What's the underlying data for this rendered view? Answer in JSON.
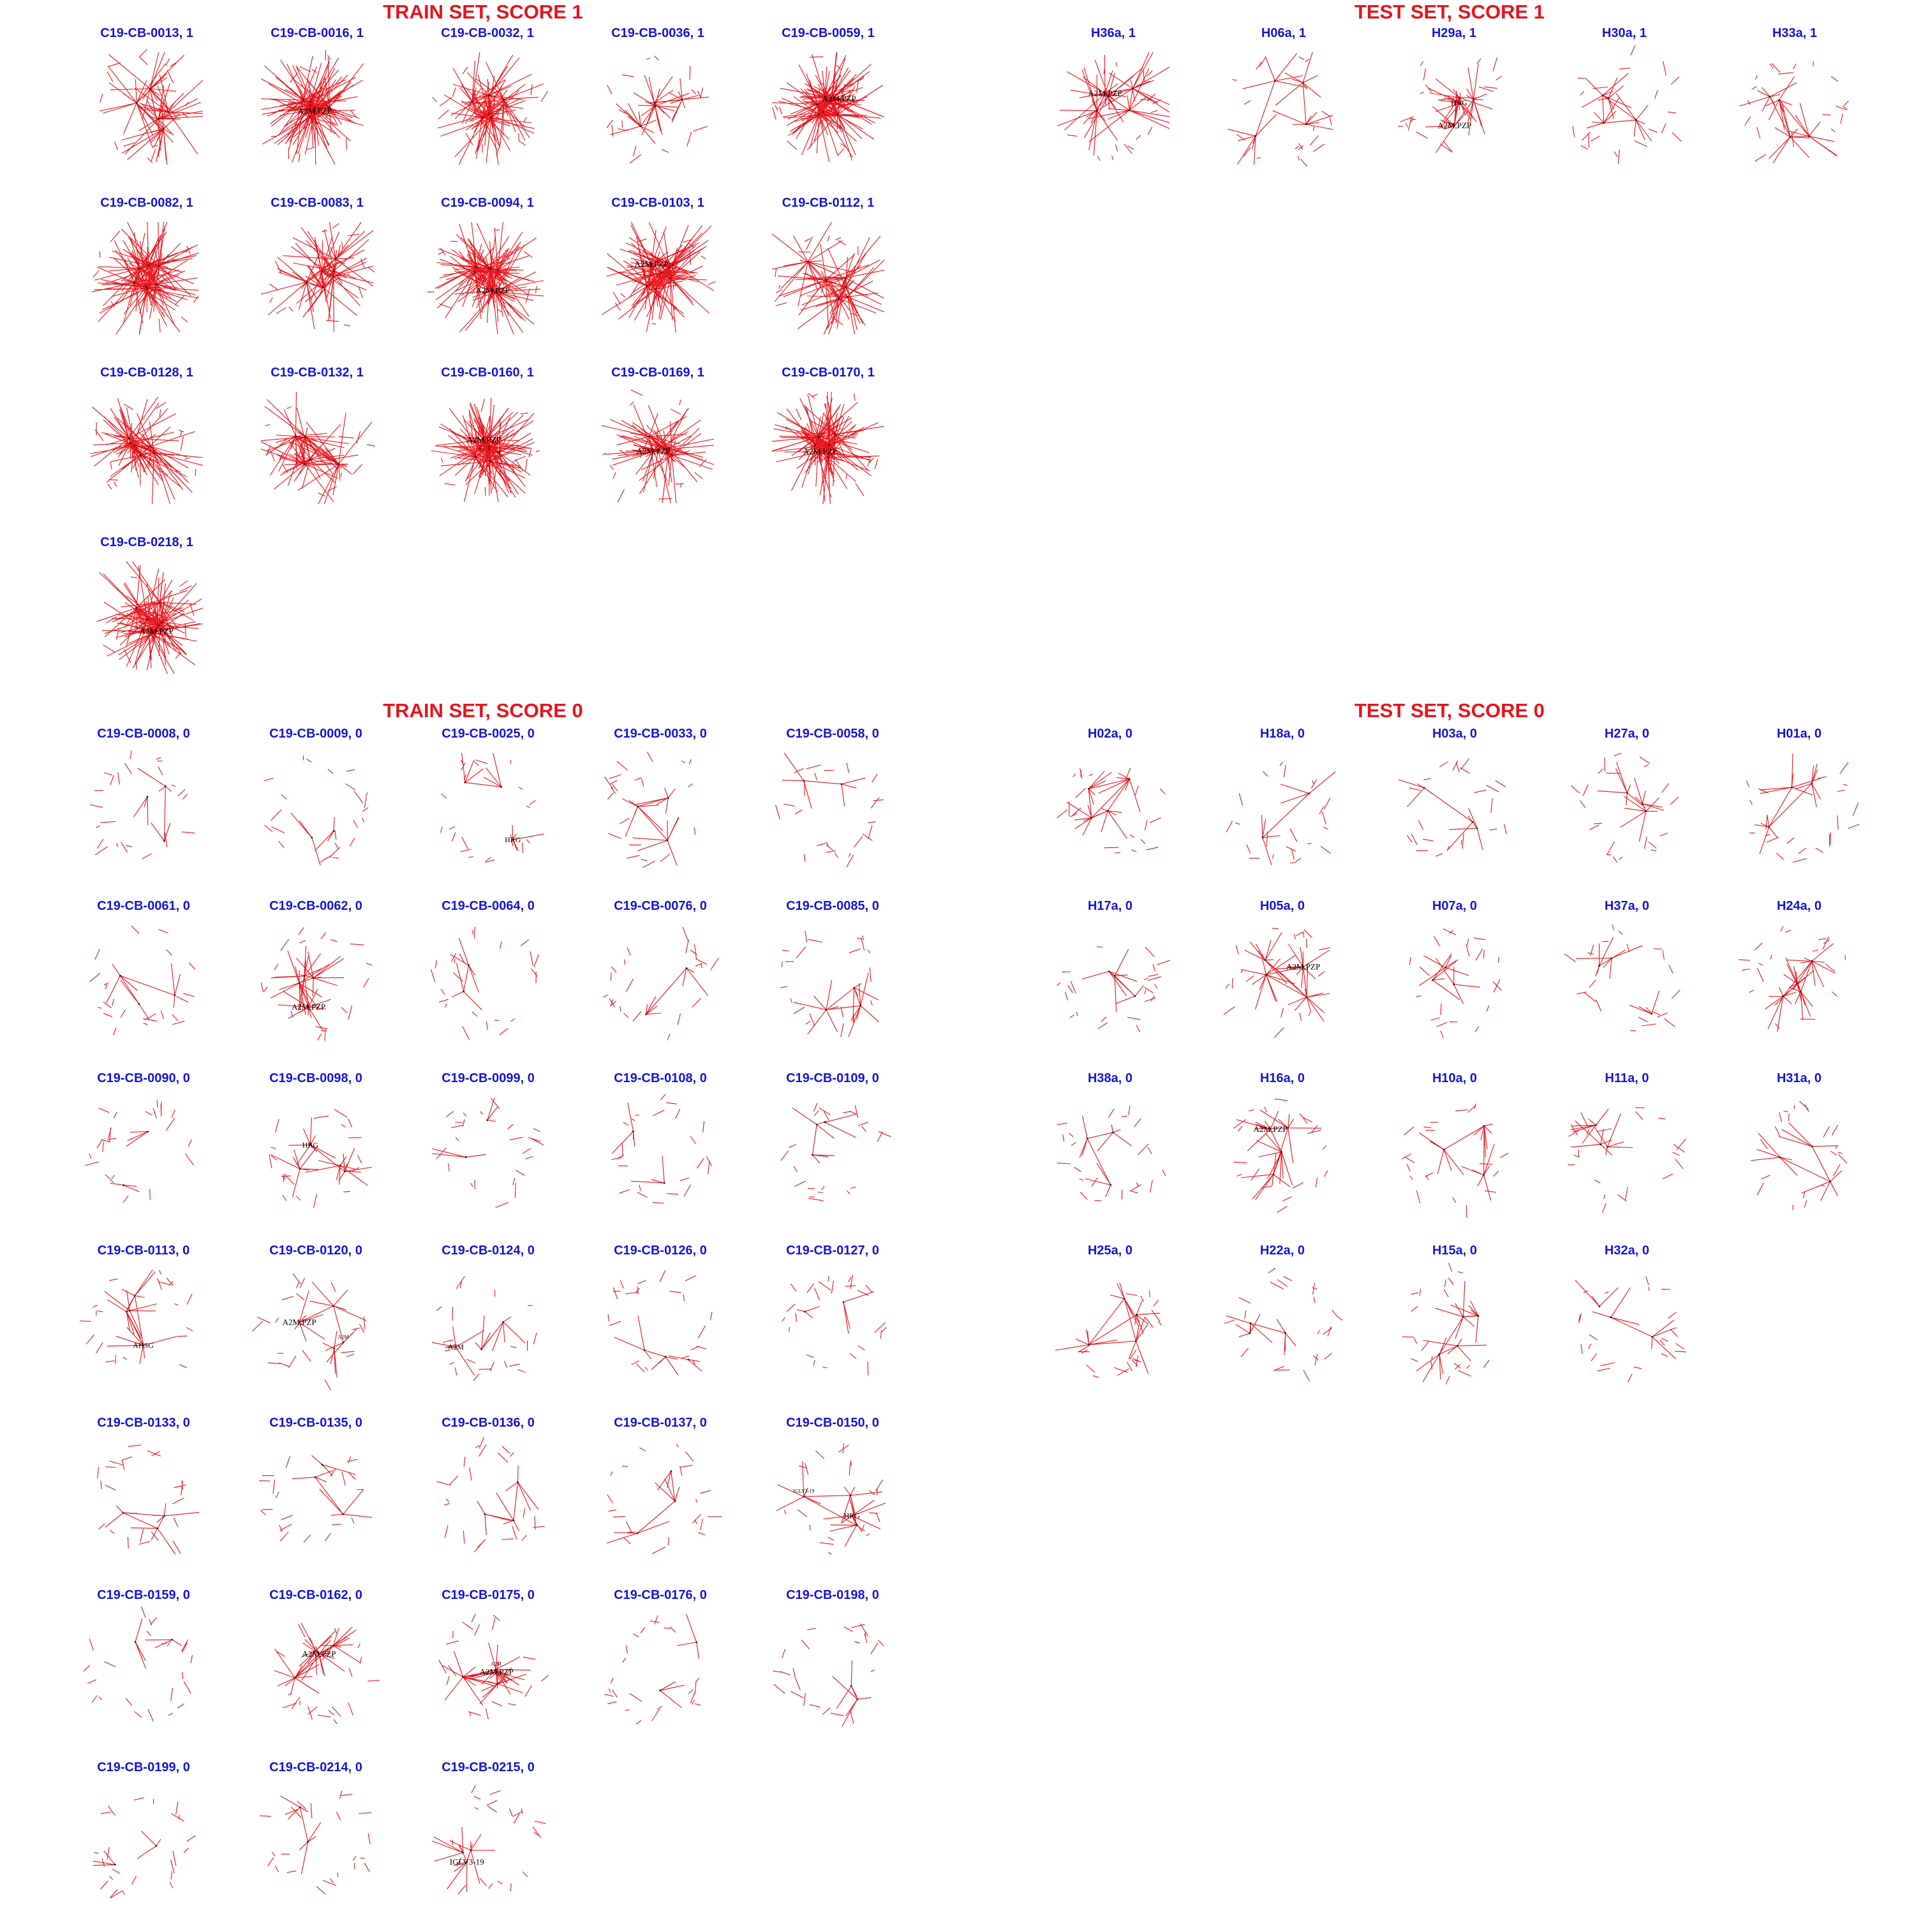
{
  "sections": [
    {
      "id": "train1",
      "title": "TRAIN SET, SCORE 1",
      "panels": [
        {
          "title": "C19-CB-0013, 1",
          "density": 0.65,
          "hubs": [],
          "small": []
        },
        {
          "title": "C19-CB-0016, 1",
          "density": 0.95,
          "hubs": [
            "A2M,PZP"
          ],
          "small": []
        },
        {
          "title": "C19-CB-0032, 1",
          "density": 0.8,
          "hubs": [],
          "small": []
        },
        {
          "title": "C19-CB-0036, 1",
          "density": 0.45,
          "hubs": [],
          "small": []
        },
        {
          "title": "C19-CB-0059, 1",
          "density": 0.95,
          "hubs": [
            "A2M,PZP"
          ],
          "small": []
        },
        {
          "title": "C19-CB-0082, 1",
          "density": 0.95,
          "hubs": [],
          "small": []
        },
        {
          "title": "C19-CB-0083, 1",
          "density": 0.7,
          "hubs": [],
          "small": []
        },
        {
          "title": "C19-CB-0094, 1",
          "density": 0.95,
          "hubs": [
            "A2M,PZP"
          ],
          "small": []
        },
        {
          "title": "C19-CB-0103, 1",
          "density": 0.9,
          "hubs": [
            "A2M,PZP"
          ],
          "small": []
        },
        {
          "title": "C19-CB-0112, 1",
          "density": 0.7,
          "hubs": [],
          "small": []
        },
        {
          "title": "C19-CB-0128, 1",
          "density": 0.75,
          "hubs": [],
          "small": []
        },
        {
          "title": "C19-CB-0132, 1",
          "density": 0.65,
          "hubs": [],
          "small": []
        },
        {
          "title": "C19-CB-0160, 1",
          "density": 0.95,
          "hubs": [
            "A2M,PZP"
          ],
          "small": []
        },
        {
          "title": "C19-CB-0169, 1",
          "density": 0.7,
          "hubs": [
            "A2M,PZP"
          ],
          "small": []
        },
        {
          "title": "C19-CB-0170, 1",
          "density": 0.95,
          "hubs": [
            "A2M,PZP"
          ],
          "small": []
        },
        {
          "title": "C19-CB-0218, 1",
          "density": 0.9,
          "hubs": [
            "A2M,PZP"
          ],
          "small": []
        }
      ]
    },
    {
      "id": "test1",
      "title": "TEST SET, SCORE 1",
      "panels": [
        {
          "title": "H36a, 1",
          "density": 0.55,
          "hubs": [
            "A2M,PZP"
          ],
          "small": []
        },
        {
          "title": "H06a, 1",
          "density": 0.35,
          "hubs": [],
          "small": []
        },
        {
          "title": "H29a, 1",
          "density": 0.45,
          "hubs": [
            "A2M,PZP",
            "HRG"
          ],
          "small": []
        },
        {
          "title": "H30a, 1",
          "density": 0.3,
          "hubs": [],
          "small": []
        },
        {
          "title": "H33a, 1",
          "density": 0.35,
          "hubs": [],
          "small": []
        }
      ]
    },
    {
      "id": "train0",
      "title": "TRAIN SET, SCORE 0",
      "panels": [
        {
          "title": "C19-CB-0008, 0",
          "density": 0.1,
          "hubs": [],
          "small": []
        },
        {
          "title": "C19-CB-0009, 0",
          "density": 0.03,
          "hubs": [],
          "small": []
        },
        {
          "title": "C19-CB-0025, 0",
          "density": 0.15,
          "hubs": [
            "HRG"
          ],
          "small": []
        },
        {
          "title": "C19-CB-0033, 0",
          "density": 0.25,
          "hubs": [],
          "small": []
        },
        {
          "title": "C19-CB-0058, 0",
          "density": 0.03,
          "hubs": [],
          "small": []
        },
        {
          "title": "C19-CB-0061, 0",
          "density": 0.12,
          "hubs": [],
          "small": []
        },
        {
          "title": "C19-CB-0062, 0",
          "density": 0.45,
          "hubs": [
            "A2M,PZP"
          ],
          "small": []
        },
        {
          "title": "C19-CB-0064, 0",
          "density": 0.08,
          "hubs": [],
          "small": []
        },
        {
          "title": "C19-CB-0076, 0",
          "density": 0.06,
          "hubs": [],
          "small": []
        },
        {
          "title": "C19-CB-0085, 0",
          "density": 0.25,
          "hubs": [],
          "small": []
        },
        {
          "title": "C19-CB-0090, 0",
          "density": 0.05,
          "hubs": [],
          "small": []
        },
        {
          "title": "C19-CB-0098, 0",
          "density": 0.35,
          "hubs": [
            "HRG"
          ],
          "small": []
        },
        {
          "title": "C19-CB-0099, 0",
          "density": 0.05,
          "hubs": [],
          "small": []
        },
        {
          "title": "C19-CB-0108, 0",
          "density": 0.08,
          "hubs": [],
          "small": []
        },
        {
          "title": "C19-CB-0109, 0",
          "density": 0.12,
          "hubs": [],
          "small": []
        },
        {
          "title": "C19-CB-0113, 0",
          "density": 0.3,
          "hubs": [
            "AHSG"
          ],
          "small": []
        },
        {
          "title": "C19-CB-0120, 0",
          "density": 0.3,
          "hubs": [
            "A2M,PZP"
          ],
          "small": [
            "A2M"
          ]
        },
        {
          "title": "C19-CB-0124, 0",
          "density": 0.2,
          "hubs": [
            "A2M"
          ],
          "small": []
        },
        {
          "title": "C19-CB-0126, 0",
          "density": 0.15,
          "hubs": [],
          "small": []
        },
        {
          "title": "C19-CB-0127, 0",
          "density": 0.03,
          "hubs": [],
          "small": []
        },
        {
          "title": "C19-CB-0133, 0",
          "density": 0.15,
          "hubs": [],
          "small": []
        },
        {
          "title": "C19-CB-0135, 0",
          "density": 0.15,
          "hubs": [],
          "small": []
        },
        {
          "title": "C19-CB-0136, 0",
          "density": 0.15,
          "hubs": [],
          "small": []
        },
        {
          "title": "C19-CB-0137, 0",
          "density": 0.12,
          "hubs": [],
          "small": []
        },
        {
          "title": "C19-CB-0150, 0",
          "density": 0.3,
          "hubs": [
            "HRG"
          ],
          "small": [
            "IGLV3-19"
          ]
        },
        {
          "title": "C19-CB-0159, 0",
          "density": 0.08,
          "hubs": [],
          "small": []
        },
        {
          "title": "C19-CB-0162, 0",
          "density": 0.45,
          "hubs": [
            "A2M,PZP"
          ],
          "small": []
        },
        {
          "title": "C19-CB-0175, 0",
          "density": 0.45,
          "hubs": [
            "A2M,PZP"
          ],
          "small": [
            "A2M"
          ]
        },
        {
          "title": "C19-CB-0176, 0",
          "density": 0.03,
          "hubs": [],
          "small": []
        },
        {
          "title": "C19-CB-0198, 0",
          "density": 0.06,
          "hubs": [],
          "small": []
        },
        {
          "title": "C19-CB-0199, 0",
          "density": 0.05,
          "hubs": [],
          "small": []
        },
        {
          "title": "C19-CB-0214, 0",
          "density": 0.06,
          "hubs": [],
          "small": []
        },
        {
          "title": "C19-CB-0215, 0",
          "density": 0.25,
          "hubs": [
            "IGLV3-19"
          ],
          "small": []
        }
      ]
    },
    {
      "id": "test0",
      "title": "TEST SET, SCORE 0",
      "panels": [
        {
          "title": "H02a, 0",
          "density": 0.3,
          "hubs": [],
          "small": []
        },
        {
          "title": "H18a, 0",
          "density": 0.08,
          "hubs": [],
          "small": []
        },
        {
          "title": "H03a, 0",
          "density": 0.12,
          "hubs": [],
          "small": []
        },
        {
          "title": "H27a, 0",
          "density": 0.25,
          "hubs": [],
          "small": []
        },
        {
          "title": "H01a, 0",
          "density": 0.25,
          "hubs": [],
          "small": []
        },
        {
          "title": "H17a, 0",
          "density": 0.1,
          "hubs": [],
          "small": []
        },
        {
          "title": "H05a, 0",
          "density": 0.45,
          "hubs": [
            "A2M,PZP"
          ],
          "small": []
        },
        {
          "title": "H07a, 0",
          "density": 0.2,
          "hubs": [],
          "small": []
        },
        {
          "title": "H37a, 0",
          "density": 0.2,
          "hubs": [],
          "small": []
        },
        {
          "title": "H24a, 0",
          "density": 0.4,
          "hubs": [],
          "small": []
        },
        {
          "title": "H38a, 0",
          "density": 0.15,
          "hubs": [],
          "small": []
        },
        {
          "title": "H16a, 0",
          "density": 0.35,
          "hubs": [
            "A2M,PZP"
          ],
          "small": []
        },
        {
          "title": "H10a, 0",
          "density": 0.25,
          "hubs": [],
          "small": []
        },
        {
          "title": "H11a, 0",
          "density": 0.25,
          "hubs": [],
          "small": []
        },
        {
          "title": "H31a, 0",
          "density": 0.2,
          "hubs": [],
          "small": []
        },
        {
          "title": "H25a, 0",
          "density": 0.3,
          "hubs": [],
          "small": []
        },
        {
          "title": "H22a, 0",
          "density": 0.15,
          "hubs": [],
          "small": []
        },
        {
          "title": "H15a, 0",
          "density": 0.3,
          "hubs": [],
          "small": []
        },
        {
          "title": "H32a, 0",
          "density": 0.15,
          "hubs": [],
          "small": []
        }
      ]
    }
  ]
}
